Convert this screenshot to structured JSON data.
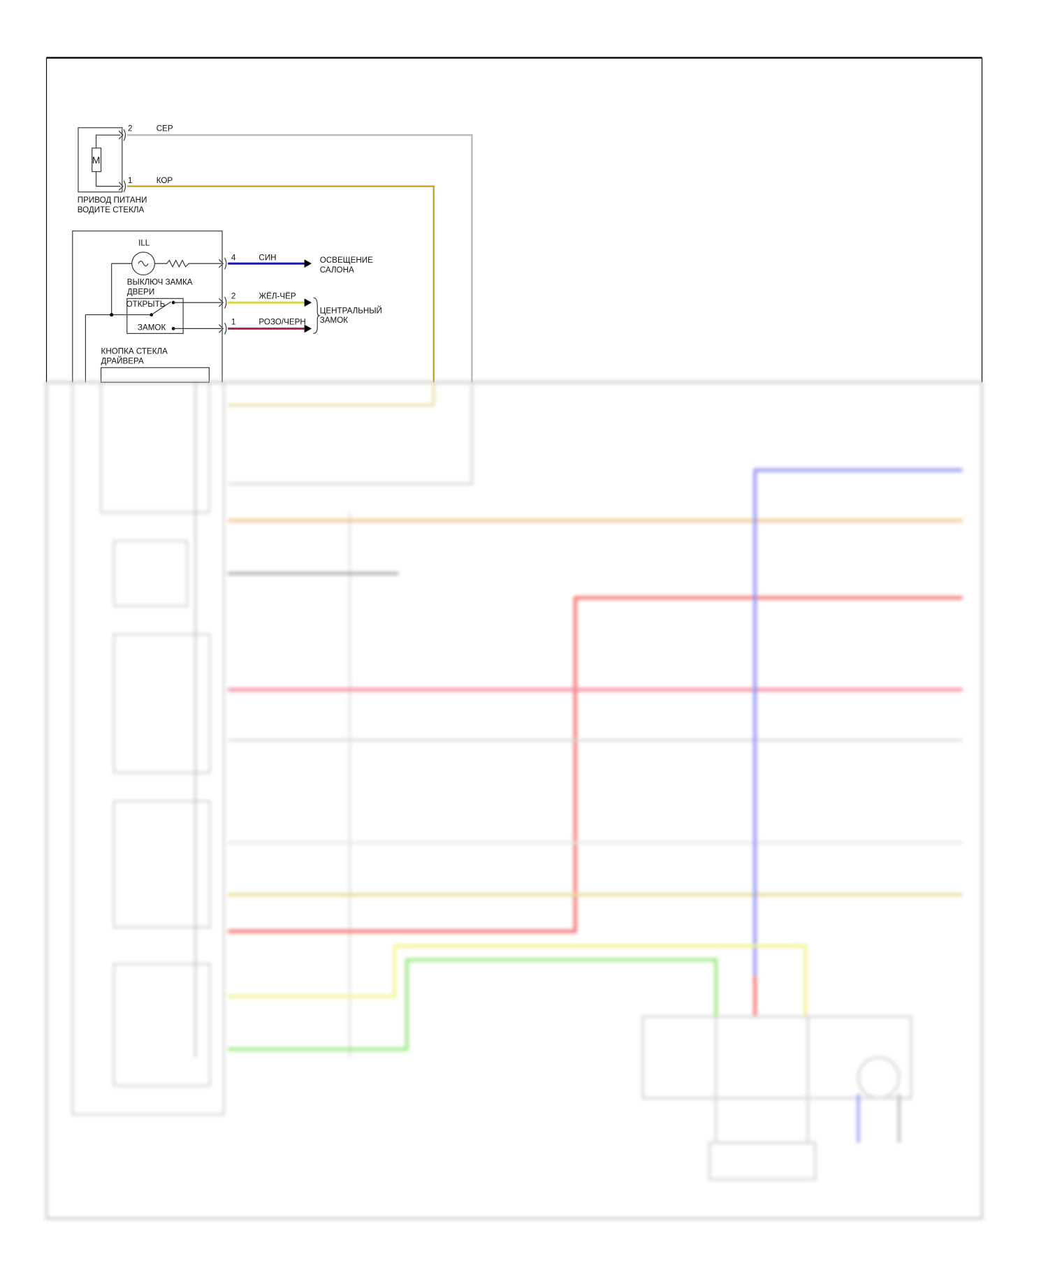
{
  "motor": {
    "symbol": "M",
    "pin2": "2",
    "wire2": "СЕР",
    "pin1": "1",
    "wire1": "КОР",
    "label_line1": "ПРИВОД ПИТАНИ",
    "label_line2": "ВОДИТЕ СТЕКЛА"
  },
  "switch_module": {
    "ill_label": "ILL",
    "lock_switch_line1": "ВЫКЛЮЧ ЗАМКА",
    "lock_switch_line2": "ДВЕРИ",
    "open_label": "ОТКРЫТЬ",
    "lock_label": "ЗАМОК",
    "pin4": "4",
    "wire4": "СИН",
    "pin2": "2",
    "wire2": "ЖЁЛ-ЧЁР",
    "pin1": "1",
    "wire1": "РОЗО/ЧЕРН",
    "interior_light_line1": "ОСВЕЩЕНИЕ",
    "interior_light_line2": "САЛОНА",
    "central_lock_line1": "ЦЕНТРАЛЬНЫЙ",
    "central_lock_line2": "ЗАМОК",
    "driver_button_line1": "КНОПКА СТЕКЛА",
    "driver_button_line2": "ДРАЙВЕРА"
  },
  "wire_colors": {
    "grey": "#b8b8b8",
    "gold": "#c8a020",
    "blue": "#1a1aa8",
    "yellow": "#d8d840",
    "pink": "#b02050",
    "orange": "#f0b070",
    "red": "#f04040",
    "light_blue": "#7070f0",
    "light_yellow": "#f0f070",
    "green": "#80e060",
    "tan": "#e0d080"
  }
}
